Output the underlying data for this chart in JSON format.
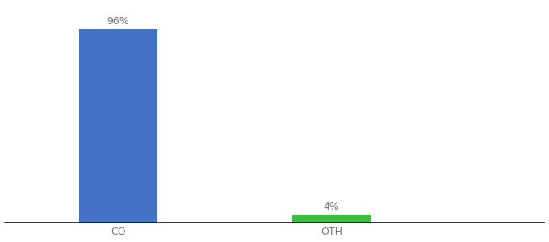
{
  "categories": [
    "CO",
    "OTH"
  ],
  "values": [
    96,
    4
  ],
  "bar_colors": [
    "#4472c4",
    "#3dbf3d"
  ],
  "label_texts": [
    "96%",
    "4%"
  ],
  "background_color": "#ffffff",
  "ylim": [
    0,
    108
  ],
  "bar_width": 0.55,
  "figsize": [
    6.8,
    3.0
  ],
  "dpi": 100,
  "label_fontsize": 9,
  "tick_fontsize": 9,
  "xlim": [
    -0.3,
    3.5
  ],
  "x_positions": [
    0.5,
    2.0
  ]
}
